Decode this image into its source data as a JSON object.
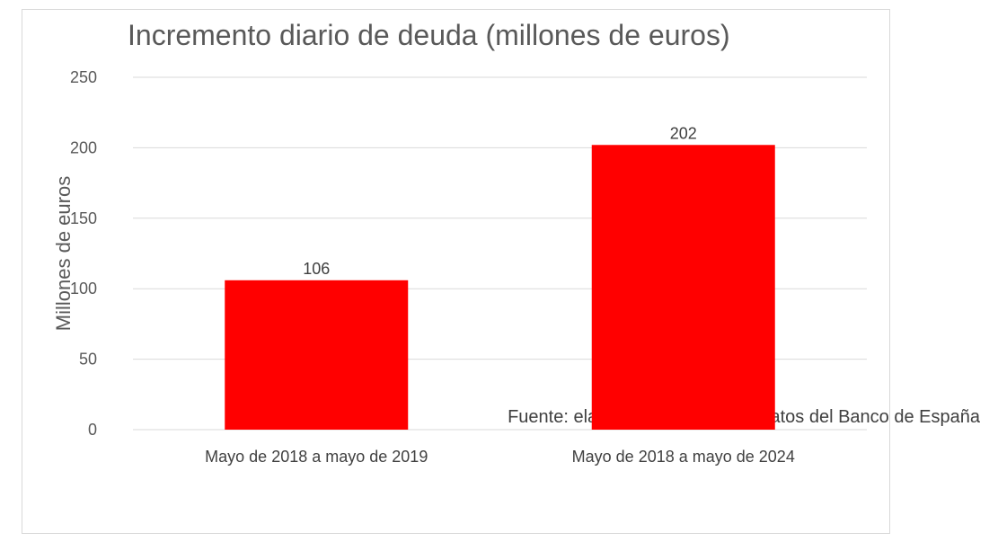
{
  "chart_data": {
    "type": "bar",
    "title": "Incremento diario de deuda (millones de euros)",
    "xlabel": "",
    "ylabel": "Millones de euros",
    "ylim": [
      0,
      250
    ],
    "yticks": [
      0,
      50,
      100,
      150,
      200,
      250
    ],
    "grid": true,
    "categories": [
      "Mayo de 2018 a mayo de 2019",
      "Mayo de 2018 a mayo de 2024"
    ],
    "values": [
      106,
      202
    ],
    "data_labels": [
      "106",
      "202"
    ],
    "bar_color": "#ff0000",
    "annotation": "Fuente: elaboración propia con datos del Banco de España"
  }
}
